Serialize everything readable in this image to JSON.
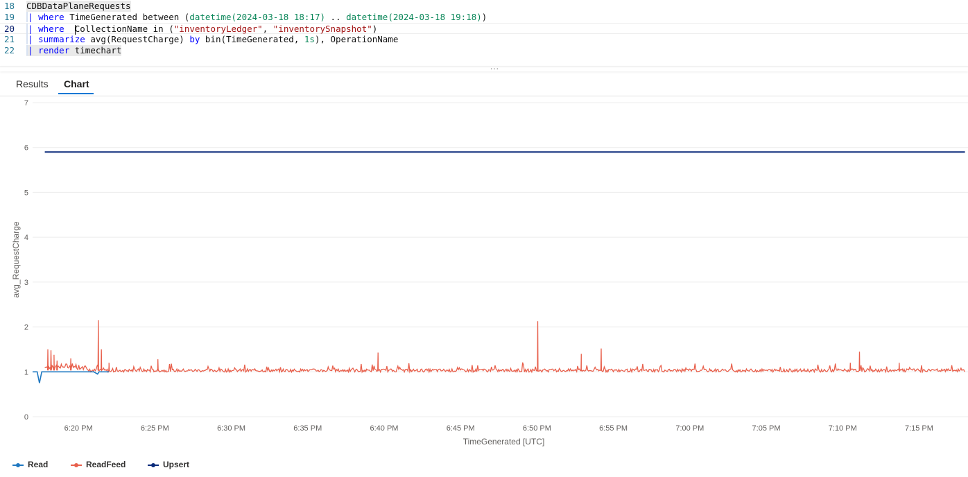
{
  "editor": {
    "lines": [
      {
        "num": "18",
        "tokens": [
          {
            "t": "CDBDataPlaneRequests",
            "c": "plain"
          }
        ]
      },
      {
        "num": "19",
        "tokens": [
          {
            "t": "| ",
            "c": "pipe"
          },
          {
            "t": "where",
            "c": "kw"
          },
          {
            "t": " TimeGenerated between (",
            "c": "plain"
          },
          {
            "t": "datetime(2024-03-18 18:17)",
            "c": "dt"
          },
          {
            "t": " .. ",
            "c": "plain"
          },
          {
            "t": "datetime(2024-03-18 19:18)",
            "c": "dt"
          },
          {
            "t": ")",
            "c": "plain"
          }
        ]
      },
      {
        "num": "20",
        "current": true,
        "tokens": [
          {
            "t": "| ",
            "c": "pipe"
          },
          {
            "t": "where",
            "c": "kw"
          },
          {
            "t": "  ",
            "c": "plain"
          },
          {
            "t": "|",
            "c": "cursor"
          },
          {
            "t": "CollectionName in (",
            "c": "plain"
          },
          {
            "t": "\"inventoryLedger\"",
            "c": "str"
          },
          {
            "t": ", ",
            "c": "plain"
          },
          {
            "t": "\"inventorySnapshot\"",
            "c": "str"
          },
          {
            "t": ")",
            "c": "plain"
          }
        ]
      },
      {
        "num": "21",
        "tokens": [
          {
            "t": "| ",
            "c": "pipe"
          },
          {
            "t": "summarize",
            "c": "kw"
          },
          {
            "t": " avg(RequestCharge) ",
            "c": "plain"
          },
          {
            "t": "by",
            "c": "kw"
          },
          {
            "t": " bin(TimeGenerated, ",
            "c": "plain"
          },
          {
            "t": "1s",
            "c": "num"
          },
          {
            "t": "), OperationName",
            "c": "plain"
          }
        ]
      },
      {
        "num": "22",
        "tokens": [
          {
            "t": "| ",
            "c": "pipe"
          },
          {
            "t": "render",
            "c": "kw"
          },
          {
            "t": " timechart",
            "c": "plain"
          }
        ]
      }
    ],
    "splitter_dots": "..."
  },
  "tabs": [
    {
      "label": "Results",
      "active": false
    },
    {
      "label": "Chart",
      "active": true
    }
  ],
  "chart_data": {
    "type": "line",
    "xlabel": "TimeGenerated [UTC]",
    "ylabel": "avg_RequestCharge",
    "ylim": [
      0,
      7
    ],
    "yticks": [
      "0",
      "1",
      "2",
      "3",
      "4",
      "5",
      "6",
      "7"
    ],
    "xlim": [
      "18:17",
      "19:18"
    ],
    "xticks": [
      "6:20 PM",
      "6:25 PM",
      "6:30 PM",
      "6:35 PM",
      "6:40 PM",
      "6:45 PM",
      "6:50 PM",
      "6:55 PM",
      "7:00 PM",
      "7:05 PM",
      "7:10 PM",
      "7:15 PM"
    ],
    "xtick_minutes": [
      20,
      25,
      30,
      35,
      40,
      45,
      50,
      55,
      60,
      65,
      70,
      75
    ],
    "grid": "horizontal",
    "legend_position": "bottom-left",
    "series": [
      {
        "name": "Read",
        "color": "#1f78c1",
        "x_min": [
          17.0,
          17.3,
          17.45,
          17.6,
          17.8,
          18.2,
          18.6,
          19.0,
          19.5,
          20.0,
          20.5,
          21.0,
          21.25,
          21.35,
          21.5,
          22.0
        ],
        "values": [
          1.0,
          1.0,
          0.75,
          1.0,
          1.0,
          1.0,
          1.0,
          1.0,
          1.0,
          1.0,
          1.0,
          1.0,
          0.95,
          1.0,
          1.0,
          1.0
        ]
      },
      {
        "name": "ReadFeed",
        "color": "#e8604c",
        "baseline": 1.03,
        "noise": 0.07,
        "spikes": [
          {
            "x_min": 18.0,
            "value": 1.5
          },
          {
            "x_min": 18.2,
            "value": 1.48
          },
          {
            "x_min": 18.4,
            "value": 1.38
          },
          {
            "x_min": 18.6,
            "value": 1.25
          },
          {
            "x_min": 19.5,
            "value": 1.3
          },
          {
            "x_min": 21.3,
            "value": 2.15
          },
          {
            "x_min": 21.5,
            "value": 1.5
          },
          {
            "x_min": 22.0,
            "value": 1.2
          },
          {
            "x_min": 25.2,
            "value": 1.28
          },
          {
            "x_min": 39.6,
            "value": 1.43
          },
          {
            "x_min": 50.05,
            "value": 2.13
          },
          {
            "x_min": 52.9,
            "value": 1.4
          },
          {
            "x_min": 54.2,
            "value": 1.52
          },
          {
            "x_min": 71.1,
            "value": 1.45
          },
          {
            "x_min": 70.5,
            "value": 1.2
          },
          {
            "x_min": 73.7,
            "value": 1.2
          }
        ],
        "x_start": 17.8,
        "x_end": 78.0
      },
      {
        "name": "Upsert",
        "color": "#0a2a7a",
        "x_min": [
          17.8,
          78.0
        ],
        "values": [
          5.9,
          5.9
        ]
      }
    ]
  },
  "legend": [
    {
      "name": "Read",
      "color": "#1f78c1"
    },
    {
      "name": "ReadFeed",
      "color": "#e8604c"
    },
    {
      "name": "Upsert",
      "color": "#0a2a7a"
    }
  ]
}
